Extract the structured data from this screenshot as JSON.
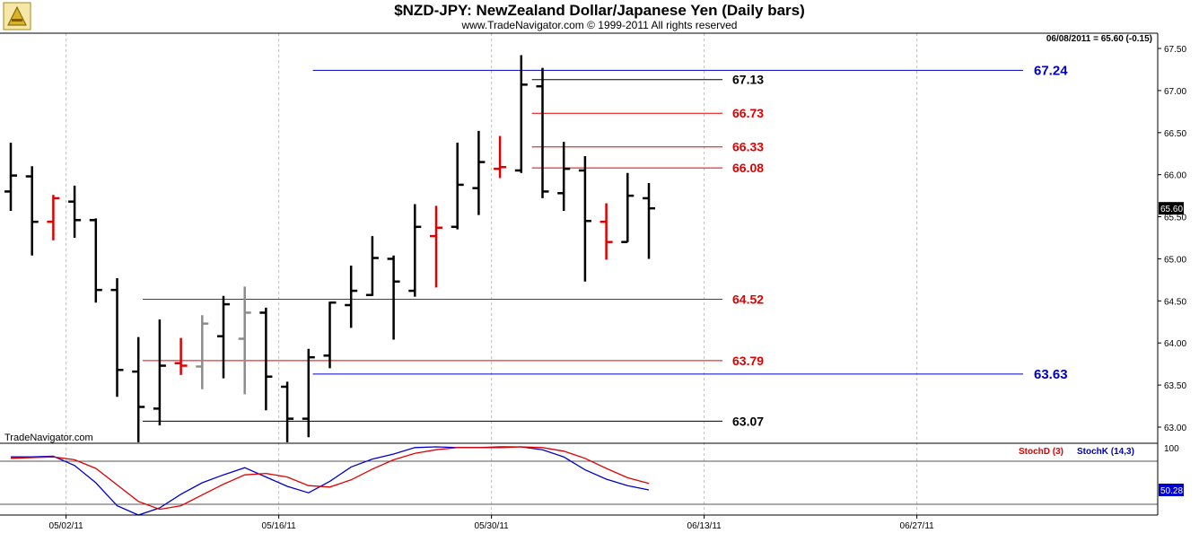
{
  "header": {
    "title": "$NZD-JPY:  NewZealand Dollar/Japanese Yen  (Daily bars)",
    "subtitle": "www.TradeNavigator.com © 1999-2011 All rights reserved",
    "info": "06/08/2011 = 65.60 (-0.15)",
    "watermark": "TradeNavigator.com"
  },
  "colors": {
    "black_bar": "#000000",
    "red_bar": "#e00000",
    "gray_bar": "#8c8c8c",
    "red_line": "#e00000",
    "blue_line": "#0000bb",
    "stochD": "#e00000",
    "stochK": "#0000cc"
  },
  "chart_data": {
    "type": "ohlc",
    "x_tick_labels": [
      "05/02/11",
      "05/16/11",
      "05/30/11",
      "06/13/11",
      "06/27/11"
    ],
    "y_ticks": [
      "63.00",
      "63.50",
      "64.00",
      "64.50",
      "65.00",
      "65.50",
      "66.00",
      "66.50",
      "67.00",
      "67.50"
    ],
    "ylim": [
      62.8,
      67.6
    ],
    "last_price_label": "65.60",
    "bars": [
      {
        "o": 65.8,
        "h": 66.38,
        "l": 65.57,
        "c": 65.99,
        "color": "black"
      },
      {
        "o": 65.98,
        "h": 66.1,
        "l": 65.04,
        "c": 65.44,
        "color": "black"
      },
      {
        "o": 65.44,
        "h": 65.76,
        "l": 65.22,
        "c": 65.72,
        "color": "red"
      },
      {
        "o": 65.68,
        "h": 65.87,
        "l": 65.25,
        "c": 65.46,
        "color": "black"
      },
      {
        "o": 65.46,
        "h": 65.48,
        "l": 64.48,
        "c": 64.63,
        "color": "black"
      },
      {
        "o": 64.63,
        "h": 64.77,
        "l": 63.36,
        "c": 63.68,
        "color": "black"
      },
      {
        "o": 63.66,
        "h": 64.07,
        "l": 62.82,
        "c": 63.24,
        "color": "black"
      },
      {
        "o": 63.22,
        "h": 64.28,
        "l": 63.02,
        "c": 63.73,
        "color": "black"
      },
      {
        "o": 63.76,
        "h": 64.06,
        "l": 63.62,
        "c": 63.73,
        "color": "red"
      },
      {
        "o": 63.72,
        "h": 64.33,
        "l": 63.45,
        "c": 64.23,
        "color": "gray"
      },
      {
        "o": 64.08,
        "h": 64.56,
        "l": 63.58,
        "c": 64.46,
        "color": "black"
      },
      {
        "o": 64.05,
        "h": 64.67,
        "l": 63.39,
        "c": 64.36,
        "color": "gray"
      },
      {
        "o": 64.36,
        "h": 64.42,
        "l": 63.2,
        "c": 63.6,
        "color": "black"
      },
      {
        "o": 63.48,
        "h": 63.54,
        "l": 62.82,
        "c": 63.1,
        "color": "black"
      },
      {
        "o": 63.1,
        "h": 63.93,
        "l": 62.88,
        "c": 63.83,
        "color": "black"
      },
      {
        "o": 63.85,
        "h": 64.49,
        "l": 63.7,
        "c": 64.48,
        "color": "black"
      },
      {
        "o": 64.45,
        "h": 64.92,
        "l": 64.18,
        "c": 64.62,
        "color": "black"
      },
      {
        "o": 64.57,
        "h": 65.27,
        "l": 64.56,
        "c": 65.01,
        "color": "black"
      },
      {
        "o": 65.0,
        "h": 65.04,
        "l": 64.04,
        "c": 64.73,
        "color": "black"
      },
      {
        "o": 64.62,
        "h": 65.65,
        "l": 64.55,
        "c": 65.38,
        "color": "black"
      },
      {
        "o": 65.27,
        "h": 65.63,
        "l": 64.66,
        "c": 65.37,
        "color": "red"
      },
      {
        "o": 65.38,
        "h": 66.38,
        "l": 65.35,
        "c": 65.88,
        "color": "black"
      },
      {
        "o": 65.84,
        "h": 66.52,
        "l": 65.52,
        "c": 66.15,
        "color": "black"
      },
      {
        "o": 66.07,
        "h": 66.46,
        "l": 65.96,
        "c": 66.09,
        "color": "red"
      },
      {
        "o": 66.05,
        "h": 67.42,
        "l": 66.02,
        "c": 67.07,
        "color": "black"
      },
      {
        "o": 67.05,
        "h": 67.27,
        "l": 65.72,
        "c": 65.8,
        "color": "black"
      },
      {
        "o": 65.78,
        "h": 66.39,
        "l": 65.57,
        "c": 66.07,
        "color": "black"
      },
      {
        "o": 66.05,
        "h": 66.22,
        "l": 64.73,
        "c": 65.45,
        "color": "black"
      },
      {
        "o": 65.44,
        "h": 65.66,
        "l": 64.99,
        "c": 65.2,
        "color": "red"
      },
      {
        "o": 65.2,
        "h": 66.02,
        "l": 65.2,
        "c": 65.75,
        "color": "black"
      },
      {
        "o": 65.72,
        "h": 65.9,
        "l": 65.0,
        "c": 65.6,
        "color": "black"
      }
    ],
    "levels": [
      {
        "label": "67.24",
        "value": 67.24,
        "color": "blue"
      },
      {
        "label": "67.13",
        "value": 67.13,
        "color": "black"
      },
      {
        "label": "66.73",
        "value": 66.73,
        "color": "red"
      },
      {
        "label": "66.33",
        "value": 66.33,
        "color": "red"
      },
      {
        "label": "66.08",
        "value": 66.08,
        "color": "red"
      },
      {
        "label": "64.52",
        "value": 64.52,
        "color": "red"
      },
      {
        "label": "63.79",
        "value": 63.79,
        "color": "red"
      },
      {
        "label": "63.63",
        "value": 63.63,
        "color": "blue"
      },
      {
        "label": "63.07",
        "value": 63.07,
        "color": "black"
      }
    ],
    "stochastic": {
      "scale_label": "100",
      "last_value_label": "50.28",
      "legend": [
        {
          "name": "StochD (3)",
          "color": "red"
        },
        {
          "name": "StochK (14,3)",
          "color": "blue"
        }
      ],
      "k_values": [
        86,
        86,
        87,
        74,
        50,
        18,
        5,
        15,
        34,
        50,
        61,
        71,
        58,
        45,
        36,
        52,
        72,
        83,
        90,
        99,
        100,
        99,
        99,
        100,
        100,
        96,
        86,
        68,
        55,
        46,
        40
      ],
      "d_values": [
        84,
        85,
        86,
        82,
        70,
        47,
        24,
        13,
        18,
        33,
        48,
        61,
        63,
        58,
        46,
        44,
        54,
        69,
        82,
        91,
        96,
        99,
        99,
        99,
        100,
        99,
        94,
        84,
        70,
        57,
        49
      ]
    }
  }
}
